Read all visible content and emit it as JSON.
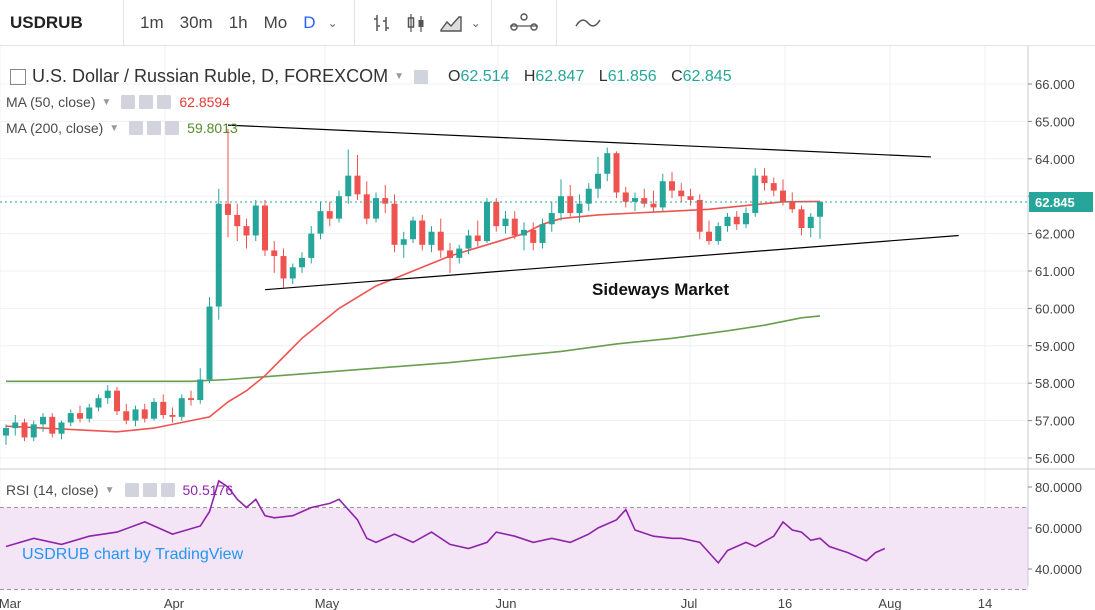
{
  "toolbar": {
    "symbol": "USDRUB",
    "intervals": [
      "1m",
      "30m",
      "1h",
      "Mo",
      "D"
    ],
    "active_interval": "D"
  },
  "legend": {
    "title": "U.S. Dollar / Russian Ruble, D, FOREXCOM",
    "o_label": "O",
    "o": "62.514",
    "h_label": "H",
    "h": "62.847",
    "l_label": "L",
    "l": "61.856",
    "c_label": "C",
    "c": "62.845",
    "ma50_label": "MA (50, close)",
    "ma50_value": "62.8594",
    "ma200_label": "MA (200, close)",
    "ma200_value": "59.8013",
    "rsi_label": "RSI (14, close)",
    "rsi_value": "50.5176"
  },
  "watermark": "USDRUB chart by TradingView",
  "colors": {
    "up": "#26a69a",
    "down": "#ef5350",
    "ma50": "#ef5350",
    "ma200": "#6a9e4f",
    "rsi": "#8e24aa",
    "rsi_band": "#f3e5f5",
    "accent": "#2962ff",
    "price_badge": "#26a69a"
  },
  "chart_data": [
    {
      "type": "candlestick",
      "annotation": "Sideways Market",
      "price_axis": {
        "ticks": [
          "66.000",
          "65.000",
          "64.000",
          "63.000",
          "62.000",
          "61.000",
          "60.000",
          "59.000",
          "58.000",
          "57.000",
          "56.000"
        ],
        "range": [
          55.7,
          66.4
        ]
      },
      "last_price": "62.845",
      "time_axis": {
        "labels": [
          "Mar",
          "Apr",
          "May",
          "Jun",
          "Jul",
          "16",
          "Aug",
          "14"
        ]
      },
      "candles": [
        [
          56.6,
          56.9,
          56.35,
          56.8
        ],
        [
          56.8,
          57.15,
          56.6,
          56.95
        ],
        [
          56.95,
          57.05,
          56.45,
          56.55
        ],
        [
          56.55,
          57.0,
          56.45,
          56.9
        ],
        [
          56.9,
          57.2,
          56.7,
          57.1
        ],
        [
          57.1,
          57.2,
          56.55,
          56.65
        ],
        [
          56.65,
          57.0,
          56.5,
          56.95
        ],
        [
          56.95,
          57.3,
          56.85,
          57.2
        ],
        [
          57.2,
          57.4,
          56.95,
          57.05
        ],
        [
          57.05,
          57.45,
          56.95,
          57.35
        ],
        [
          57.35,
          57.7,
          57.25,
          57.6
        ],
        [
          57.6,
          57.95,
          57.45,
          57.8
        ],
        [
          57.8,
          57.9,
          57.15,
          57.25
        ],
        [
          57.25,
          57.45,
          56.9,
          57.0
        ],
        [
          57.0,
          57.4,
          56.85,
          57.3
        ],
        [
          57.3,
          57.45,
          56.95,
          57.05
        ],
        [
          57.05,
          57.6,
          57.0,
          57.5
        ],
        [
          57.5,
          57.7,
          57.05,
          57.15
        ],
        [
          57.15,
          57.35,
          56.95,
          57.1
        ],
        [
          57.1,
          57.7,
          57.0,
          57.6
        ],
        [
          57.6,
          57.8,
          57.4,
          57.55
        ],
        [
          57.55,
          58.4,
          57.45,
          58.1
        ],
        [
          58.1,
          60.3,
          58.0,
          60.05
        ],
        [
          60.05,
          63.2,
          59.7,
          62.8
        ],
        [
          62.8,
          64.8,
          61.9,
          62.5
        ],
        [
          62.5,
          62.8,
          61.8,
          62.2
        ],
        [
          62.2,
          62.4,
          61.6,
          61.95
        ],
        [
          61.95,
          62.9,
          61.8,
          62.75
        ],
        [
          62.75,
          62.9,
          61.4,
          61.55
        ],
        [
          61.55,
          61.8,
          60.95,
          61.4
        ],
        [
          61.4,
          61.6,
          60.55,
          60.8
        ],
        [
          60.8,
          61.2,
          60.65,
          61.1
        ],
        [
          61.1,
          61.5,
          60.95,
          61.35
        ],
        [
          61.35,
          62.2,
          61.2,
          62.0
        ],
        [
          62.0,
          62.85,
          61.85,
          62.6
        ],
        [
          62.6,
          62.85,
          62.2,
          62.4
        ],
        [
          62.4,
          63.15,
          62.3,
          63.0
        ],
        [
          63.0,
          64.25,
          62.8,
          63.55
        ],
        [
          63.55,
          64.1,
          62.9,
          63.05
        ],
        [
          63.05,
          63.4,
          62.25,
          62.4
        ],
        [
          62.4,
          63.1,
          62.3,
          62.95
        ],
        [
          62.95,
          63.3,
          62.55,
          62.8
        ],
        [
          62.8,
          63.05,
          61.5,
          61.7
        ],
        [
          61.7,
          62.05,
          61.35,
          61.85
        ],
        [
          61.85,
          62.45,
          61.75,
          62.35
        ],
        [
          62.35,
          62.5,
          61.55,
          61.7
        ],
        [
          61.7,
          62.2,
          61.5,
          62.05
        ],
        [
          62.05,
          62.4,
          61.35,
          61.55
        ],
        [
          61.55,
          61.75,
          60.95,
          61.35
        ],
        [
          61.35,
          61.7,
          61.2,
          61.6
        ],
        [
          61.6,
          62.1,
          61.45,
          61.95
        ],
        [
          61.95,
          62.35,
          61.65,
          61.8
        ],
        [
          61.8,
          62.95,
          61.75,
          62.85
        ],
        [
          62.85,
          62.95,
          62.05,
          62.2
        ],
        [
          62.2,
          62.6,
          62.0,
          62.4
        ],
        [
          62.4,
          62.6,
          61.85,
          61.95
        ],
        [
          61.95,
          62.3,
          61.55,
          62.1
        ],
        [
          62.1,
          62.3,
          61.55,
          61.75
        ],
        [
          61.75,
          62.4,
          61.6,
          62.25
        ],
        [
          62.25,
          62.85,
          62.05,
          62.55
        ],
        [
          62.55,
          63.45,
          62.35,
          63.0
        ],
        [
          63.0,
          63.3,
          62.45,
          62.55
        ],
        [
          62.55,
          63.05,
          62.3,
          62.8
        ],
        [
          62.8,
          63.35,
          62.6,
          63.2
        ],
        [
          63.2,
          64.05,
          62.95,
          63.6
        ],
        [
          63.6,
          64.3,
          63.4,
          64.15
        ],
        [
          64.15,
          64.2,
          62.95,
          63.1
        ],
        [
          63.1,
          63.25,
          62.7,
          62.85
        ],
        [
          62.85,
          63.1,
          62.6,
          62.95
        ],
        [
          62.95,
          63.2,
          62.7,
          62.8
        ],
        [
          62.8,
          63.15,
          62.55,
          62.7
        ],
        [
          62.7,
          63.6,
          62.6,
          63.4
        ],
        [
          63.4,
          63.65,
          62.95,
          63.15
        ],
        [
          63.15,
          63.35,
          62.85,
          63.0
        ],
        [
          63.0,
          63.2,
          62.75,
          62.9
        ],
        [
          62.9,
          63.05,
          61.85,
          62.05
        ],
        [
          62.05,
          62.35,
          61.7,
          61.8
        ],
        [
          61.8,
          62.3,
          61.7,
          62.2
        ],
        [
          62.2,
          62.55,
          62.05,
          62.45
        ],
        [
          62.45,
          62.6,
          62.1,
          62.25
        ],
        [
          62.25,
          62.7,
          62.15,
          62.55
        ],
        [
          62.55,
          63.75,
          62.45,
          63.55
        ],
        [
          63.55,
          63.75,
          63.15,
          63.35
        ],
        [
          63.35,
          63.5,
          63.0,
          63.15
        ],
        [
          63.15,
          63.45,
          62.75,
          62.85
        ],
        [
          62.85,
          63.1,
          62.55,
          62.65
        ],
        [
          62.65,
          62.75,
          61.95,
          62.15
        ],
        [
          62.15,
          62.55,
          61.9,
          62.45
        ],
        [
          62.45,
          62.85,
          61.86,
          62.85
        ]
      ],
      "ma50": [
        [
          0,
          56.85
        ],
        [
          12,
          56.7
        ],
        [
          16,
          56.8
        ],
        [
          20,
          57.0
        ],
        [
          22,
          57.1
        ],
        [
          24,
          57.5
        ],
        [
          26,
          57.8
        ],
        [
          28,
          58.2
        ],
        [
          30,
          58.7
        ],
        [
          32,
          59.2
        ],
        [
          34,
          59.6
        ],
        [
          36,
          60.0
        ],
        [
          38,
          60.3
        ],
        [
          40,
          60.6
        ],
        [
          44,
          61.0
        ],
        [
          48,
          61.4
        ],
        [
          52,
          61.7
        ],
        [
          56,
          62.0
        ],
        [
          58,
          62.25
        ],
        [
          60,
          62.4
        ],
        [
          64,
          62.5
        ],
        [
          68,
          62.55
        ],
        [
          72,
          62.6
        ],
        [
          76,
          62.65
        ],
        [
          80,
          62.75
        ],
        [
          84,
          62.85
        ],
        [
          88,
          62.86
        ]
      ],
      "ma200": [
        [
          0,
          58.05
        ],
        [
          10,
          58.05
        ],
        [
          20,
          58.05
        ],
        [
          24,
          58.1
        ],
        [
          32,
          58.25
        ],
        [
          40,
          58.4
        ],
        [
          48,
          58.55
        ],
        [
          56,
          58.75
        ],
        [
          60,
          58.85
        ],
        [
          66,
          59.05
        ],
        [
          72,
          59.2
        ],
        [
          78,
          59.4
        ],
        [
          82,
          59.55
        ],
        [
          86,
          59.75
        ],
        [
          88,
          59.8
        ]
      ],
      "trendline_upper": {
        "from": [
          24,
          64.9
        ],
        "to": [
          100,
          64.05
        ]
      },
      "trendline_lower": {
        "from": [
          28,
          60.5
        ],
        "to": [
          103,
          61.95
        ]
      }
    },
    {
      "type": "line",
      "name": "RSI (14, close)",
      "axis": {
        "ticks": [
          "80.0000",
          "60.0000",
          "40.0000"
        ],
        "range": [
          30,
          84
        ]
      },
      "band": [
        30,
        70
      ],
      "values": [
        [
          0,
          51
        ],
        [
          3,
          55
        ],
        [
          6,
          52
        ],
        [
          9,
          56
        ],
        [
          12,
          58
        ],
        [
          15,
          63
        ],
        [
          18,
          57
        ],
        [
          21,
          61
        ],
        [
          22,
          68
        ],
        [
          23,
          83
        ],
        [
          24,
          80
        ],
        [
          25,
          74
        ],
        [
          26,
          70
        ],
        [
          27,
          74
        ],
        [
          28,
          66
        ],
        [
          29,
          65
        ],
        [
          31,
          66
        ],
        [
          33,
          70
        ],
        [
          35,
          72
        ],
        [
          36,
          74
        ],
        [
          38,
          64
        ],
        [
          39,
          55
        ],
        [
          40,
          53
        ],
        [
          42,
          57
        ],
        [
          44,
          53
        ],
        [
          46,
          58
        ],
        [
          48,
          52
        ],
        [
          50,
          50
        ],
        [
          52,
          53
        ],
        [
          53,
          58
        ],
        [
          55,
          56
        ],
        [
          57,
          53
        ],
        [
          59,
          55
        ],
        [
          61,
          53
        ],
        [
          63,
          57
        ],
        [
          64,
          60
        ],
        [
          66,
          64
        ],
        [
          67,
          69
        ],
        [
          68,
          59
        ],
        [
          70,
          56
        ],
        [
          72,
          55
        ],
        [
          73,
          55
        ],
        [
          75,
          53
        ],
        [
          76,
          48
        ],
        [
          77,
          43
        ],
        [
          78,
          49
        ],
        [
          80,
          53
        ],
        [
          81,
          51
        ],
        [
          83,
          56
        ],
        [
          84,
          63
        ],
        [
          85,
          59
        ],
        [
          86,
          58
        ],
        [
          87,
          54
        ],
        [
          88,
          55
        ],
        [
          89,
          51
        ],
        [
          91,
          48
        ],
        [
          93,
          44
        ],
        [
          94,
          48
        ],
        [
          95,
          50
        ]
      ]
    }
  ]
}
